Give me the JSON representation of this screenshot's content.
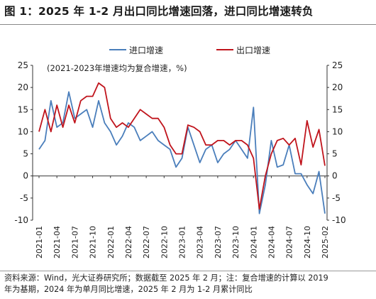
{
  "title": "图 1：2025 年 1-2 月出口同比增速回落，进口同比增速转负",
  "source_line1": "资料来源：Wind，光大证券研究所；数据截至 2025 年 2 月；注：复合增速的计算以 2019",
  "source_line2": "年为基期，2024 年为单月同比增速，2025 年 2 月为 1-2 月累计同比",
  "colors": {
    "import": "#4a7ebb",
    "export": "#c0141c"
  },
  "chart_data": {
    "type": "line",
    "annotation": "(2021-2023年增速均为复合增速，%)",
    "x_tick_labels": [
      "2021-01",
      "2021-04",
      "2021-07",
      "2021-10",
      "2022-01",
      "2022-04",
      "2022-07",
      "2022-10",
      "2023-01",
      "2023-04",
      "2023-07",
      "2023-10",
      "2024-01",
      "2024-04",
      "2024-07",
      "2024-10",
      "2025-02"
    ],
    "x": [
      "2021-01",
      "2021-02",
      "2021-03",
      "2021-04",
      "2021-05",
      "2021-06",
      "2021-07",
      "2021-08",
      "2021-09",
      "2021-10",
      "2021-11",
      "2021-12",
      "2022-01",
      "2022-02",
      "2022-03",
      "2022-04",
      "2022-05",
      "2022-06",
      "2022-07",
      "2022-08",
      "2022-09",
      "2022-10",
      "2022-11",
      "2022-12",
      "2023-01",
      "2023-02",
      "2023-03",
      "2023-04",
      "2023-05",
      "2023-06",
      "2023-07",
      "2023-08",
      "2023-09",
      "2023-10",
      "2023-11",
      "2023-12",
      "2024-01",
      "2024-02",
      "2024-03",
      "2024-04",
      "2024-05",
      "2024-06",
      "2024-07",
      "2024-08",
      "2024-09",
      "2024-10",
      "2024-11",
      "2024-12",
      "2025-02"
    ],
    "ylim": [
      -10,
      25
    ],
    "y_ticks": [
      -10,
      -5,
      0,
      5,
      10,
      15,
      20,
      25
    ],
    "y_tick_labels_left": [
      "-10",
      "-5",
      "0",
      "5",
      "10",
      "15",
      "20",
      "25"
    ],
    "y_tick_labels_right": [
      "-10",
      "-5",
      "0",
      "5",
      "10",
      "15",
      "20",
      "25"
    ],
    "series": [
      {
        "name": "进口增速",
        "values": [
          6,
          8,
          17,
          11,
          12,
          19,
          13,
          14,
          15,
          11,
          17,
          12,
          10,
          7,
          9,
          12,
          11,
          8,
          9,
          10,
          8,
          7,
          6,
          2,
          4,
          11,
          7,
          3,
          6,
          7,
          3,
          5,
          6,
          8,
          6,
          4,
          15.5,
          -8.5,
          -2,
          8,
          2,
          2.5,
          7,
          0.5,
          0.5,
          -2,
          -4,
          1,
          -8.5
        ]
      },
      {
        "name": "出口增速",
        "values": [
          10,
          15,
          10,
          16,
          11,
          16,
          12,
          17,
          18,
          18,
          21,
          20,
          13,
          11,
          12,
          11,
          13,
          15,
          14,
          13,
          13,
          11,
          7,
          5,
          5,
          11.5,
          11,
          10,
          7,
          7,
          8,
          8,
          7,
          8,
          8,
          7,
          4,
          -7.5,
          0,
          5,
          8,
          8.5,
          7,
          8.5,
          2.5,
          12.5,
          6.5,
          10.5,
          2.3
        ]
      }
    ],
    "legend_position": "top-center",
    "grid": false
  }
}
